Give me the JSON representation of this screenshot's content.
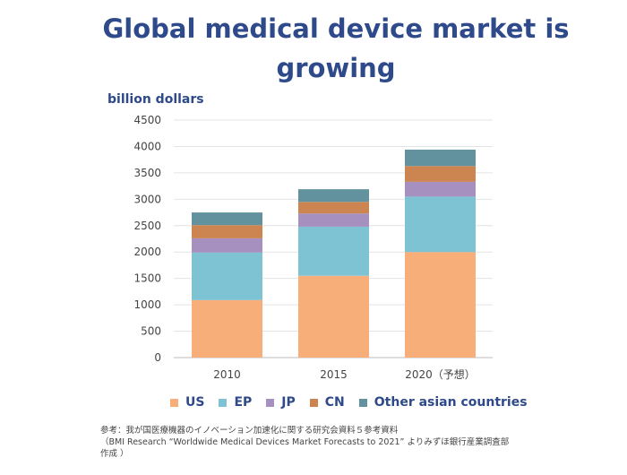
{
  "title": "Global medical device market is growing",
  "chart_data": {
    "type": "bar",
    "stacked": true,
    "ylabel": "billion dollars",
    "ylim": [
      0,
      4500
    ],
    "yticks": [
      0,
      500,
      1000,
      1500,
      2000,
      2500,
      3000,
      3500,
      4000,
      4500
    ],
    "categories": [
      "2010",
      "2015",
      "2020（予想）"
    ],
    "series": [
      {
        "name": "US",
        "color": "#f7ae78",
        "values": [
          1090,
          1550,
          2000
        ]
      },
      {
        "name": "EP",
        "color": "#7dc3d4",
        "values": [
          900,
          930,
          1050
        ]
      },
      {
        "name": "JP",
        "color": "#a690bf",
        "values": [
          270,
          250,
          280
        ]
      },
      {
        "name": "CN",
        "color": "#cc8550",
        "values": [
          250,
          220,
          300
        ]
      },
      {
        "name": "Other asian countries",
        "color": "#62929e",
        "values": [
          240,
          240,
          310
        ]
      }
    ],
    "grid": true,
    "legend": "bottom"
  },
  "note": [
    "参考：我が国医療機器のイノベーション加速化に関する研究会資料５参考資料",
    "（BMI Research “Worldwide Medical Devices Market Forecasts to 2021” よりみずほ銀行産業調査部",
    "作成 ）"
  ]
}
